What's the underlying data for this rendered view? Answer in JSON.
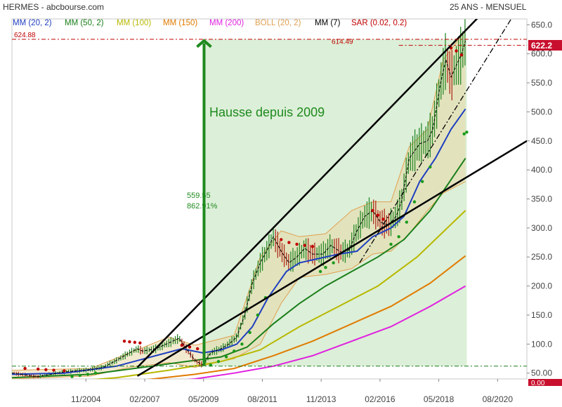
{
  "chart_data": {
    "type": "line",
    "header": {
      "left": "HERMES - abcbourse.com",
      "right": "25 ANS - MENSUEL"
    },
    "legend": [
      {
        "label": "MM (20, 2)",
        "color": "#1f3fbf"
      },
      {
        "label": "MM (50, 2)",
        "color": "#1a7f1a"
      },
      {
        "label": "MM (100)",
        "color": "#b8b800"
      },
      {
        "label": "MM (150)",
        "color": "#e07b00"
      },
      {
        "label": "MM (200)",
        "color": "#e020e0"
      },
      {
        "label": "BOLL (20, 2)",
        "color": "#e0a050"
      },
      {
        "label": "MM (7)",
        "color": "#000000"
      },
      {
        "label": "SAR (0.02, 0.2)",
        "color": "#c00000"
      }
    ],
    "x_ticks": [
      {
        "label": "11/2004",
        "t": 2004.83
      },
      {
        "label": "02/2007",
        "t": 2007.08
      },
      {
        "label": "05/2009",
        "t": 2009.33
      },
      {
        "label": "08/2011",
        "t": 2011.58
      },
      {
        "label": "11/2013",
        "t": 2013.83
      },
      {
        "label": "02/2016",
        "t": 2016.08
      },
      {
        "label": "05/2018",
        "t": 2018.33
      },
      {
        "label": "08/2020",
        "t": 2020.58
      }
    ],
    "y_ticks": [
      "50.00",
      "100.0",
      "150.0",
      "200.0",
      "250.0",
      "300.0",
      "350.0",
      "400.0",
      "450.0",
      "500.0",
      "550.0",
      "600.0",
      "650.0"
    ],
    "x_range": [
      2002.0,
      2021.7
    ],
    "y_range": [
      40,
      660
    ],
    "last_price_label": "622.2",
    "cut_label": "0.00",
    "level_624": "624.88",
    "level_614": "614.49",
    "base_level": 62,
    "annotation_title": "Hausse depuis 2009",
    "annotation_gain": "559.55",
    "annotation_pct": "862.91%",
    "price": [
      [
        2002.0,
        50
      ],
      [
        2002.5,
        47
      ],
      [
        2003.0,
        44
      ],
      [
        2003.5,
        48
      ],
      [
        2004.0,
        52
      ],
      [
        2004.5,
        54
      ],
      [
        2005.0,
        56
      ],
      [
        2005.5,
        60
      ],
      [
        2006.0,
        72
      ],
      [
        2006.5,
        85
      ],
      [
        2006.8,
        92
      ],
      [
        2007.0,
        88
      ],
      [
        2007.5,
        92
      ],
      [
        2008.0,
        102
      ],
      [
        2008.4,
        110
      ],
      [
        2008.7,
        90
      ],
      [
        2009.0,
        72
      ],
      [
        2009.3,
        64
      ],
      [
        2009.6,
        85
      ],
      [
        2010.0,
        92
      ],
      [
        2010.3,
        100
      ],
      [
        2010.6,
        112
      ],
      [
        2010.9,
        150
      ],
      [
        2011.2,
        205
      ],
      [
        2011.5,
        240
      ],
      [
        2011.8,
        265
      ],
      [
        2012.0,
        285
      ],
      [
        2012.3,
        260
      ],
      [
        2012.6,
        240
      ],
      [
        2012.9,
        250
      ],
      [
        2013.2,
        265
      ],
      [
        2013.5,
        255
      ],
      [
        2013.9,
        255
      ],
      [
        2014.2,
        270
      ],
      [
        2014.6,
        258
      ],
      [
        2014.9,
        262
      ],
      [
        2015.2,
        295
      ],
      [
        2015.5,
        320
      ],
      [
        2015.8,
        330
      ],
      [
        2016.1,
        310
      ],
      [
        2016.4,
        305
      ],
      [
        2016.7,
        320
      ],
      [
        2016.9,
        345
      ],
      [
        2017.2,
        420
      ],
      [
        2017.6,
        445
      ],
      [
        2017.9,
        450
      ],
      [
        2018.1,
        470
      ],
      [
        2018.4,
        550
      ],
      [
        2018.6,
        590
      ],
      [
        2018.8,
        560
      ],
      [
        2019.0,
        580
      ],
      [
        2019.2,
        600
      ],
      [
        2019.35,
        622.2
      ]
    ],
    "mm20": [
      [
        2002.0,
        48
      ],
      [
        2004.0,
        50
      ],
      [
        2006.0,
        62
      ],
      [
        2007.5,
        80
      ],
      [
        2008.5,
        92
      ],
      [
        2009.3,
        85
      ],
      [
        2010.0,
        90
      ],
      [
        2010.6,
        100
      ],
      [
        2011.2,
        130
      ],
      [
        2011.8,
        180
      ],
      [
        2012.5,
        225
      ],
      [
        2013.0,
        240
      ],
      [
        2013.8,
        248
      ],
      [
        2014.5,
        255
      ],
      [
        2015.2,
        260
      ],
      [
        2015.8,
        285
      ],
      [
        2016.5,
        300
      ],
      [
        2017.0,
        320
      ],
      [
        2017.6,
        380
      ],
      [
        2018.2,
        420
      ],
      [
        2018.8,
        470
      ],
      [
        2019.35,
        505
      ]
    ],
    "mm50": [
      [
        2002.0,
        42
      ],
      [
        2005.0,
        48
      ],
      [
        2007.0,
        60
      ],
      [
        2009.0,
        72
      ],
      [
        2010.0,
        78
      ],
      [
        2011.0,
        95
      ],
      [
        2012.0,
        135
      ],
      [
        2013.0,
        170
      ],
      [
        2014.0,
        200
      ],
      [
        2015.0,
        225
      ],
      [
        2016.0,
        250
      ],
      [
        2017.0,
        280
      ],
      [
        2018.0,
        330
      ],
      [
        2019.35,
        420
      ]
    ],
    "mm100": [
      [
        2002.0,
        32
      ],
      [
        2004.0,
        35
      ],
      [
        2006.0,
        42
      ],
      [
        2008.0,
        55
      ],
      [
        2010.0,
        70
      ],
      [
        2011.5,
        90
      ],
      [
        2013.0,
        130
      ],
      [
        2014.5,
        165
      ],
      [
        2016.0,
        200
      ],
      [
        2017.5,
        250
      ],
      [
        2019.35,
        330
      ]
    ],
    "mm150": [
      [
        2002.0,
        28
      ],
      [
        2005.0,
        30
      ],
      [
        2007.0,
        38
      ],
      [
        2009.0,
        48
      ],
      [
        2010.5,
        58
      ],
      [
        2012.0,
        80
      ],
      [
        2013.5,
        105
      ],
      [
        2015.0,
        135
      ],
      [
        2016.5,
        165
      ],
      [
        2018.0,
        205
      ],
      [
        2019.35,
        252
      ]
    ],
    "mm200": [
      [
        2002.0,
        24
      ],
      [
        2005.0,
        26
      ],
      [
        2007.0,
        32
      ],
      [
        2009.0,
        40
      ],
      [
        2010.5,
        50
      ],
      [
        2012.0,
        62
      ],
      [
        2013.5,
        80
      ],
      [
        2015.0,
        105
      ],
      [
        2016.5,
        130
      ],
      [
        2018.0,
        165
      ],
      [
        2019.35,
        200
      ]
    ],
    "boll_upper": [
      [
        2002.0,
        55
      ],
      [
        2005.0,
        58
      ],
      [
        2006.5,
        85
      ],
      [
        2008.0,
        112
      ],
      [
        2009.0,
        98
      ],
      [
        2010.5,
        115
      ],
      [
        2011.5,
        250
      ],
      [
        2012.3,
        295
      ],
      [
        2013.0,
        285
      ],
      [
        2014.0,
        290
      ],
      [
        2015.0,
        330
      ],
      [
        2015.8,
        345
      ],
      [
        2016.5,
        345
      ],
      [
        2017.2,
        440
      ],
      [
        2017.9,
        470
      ],
      [
        2018.5,
        590
      ],
      [
        2019.35,
        640
      ]
    ],
    "boll_lower": [
      [
        2002.0,
        40
      ],
      [
        2005.0,
        45
      ],
      [
        2006.5,
        60
      ],
      [
        2008.0,
        68
      ],
      [
        2009.0,
        60
      ],
      [
        2010.5,
        75
      ],
      [
        2011.5,
        100
      ],
      [
        2012.3,
        170
      ],
      [
        2013.0,
        215
      ],
      [
        2014.0,
        220
      ],
      [
        2015.0,
        230
      ],
      [
        2015.8,
        255
      ],
      [
        2016.5,
        260
      ],
      [
        2017.2,
        290
      ],
      [
        2017.9,
        330
      ],
      [
        2018.5,
        360
      ],
      [
        2019.35,
        380
      ]
    ],
    "trendlines": [
      {
        "from": [
          2006.8,
          60
        ],
        "to": [
          2020.0,
          670
        ],
        "style": "solid"
      },
      {
        "from": [
          2006.8,
          45
        ],
        "to": [
          2021.7,
          450
        ],
        "style": "solid"
      },
      {
        "from": [
          2015.3,
          240
        ],
        "to": [
          2021.1,
          660
        ],
        "style": "dashdot"
      }
    ],
    "sar_red": [
      [
        2002.5,
        58
      ],
      [
        2003.0,
        57
      ],
      [
        2003.3,
        56
      ],
      [
        2003.6,
        55
      ],
      [
        2004.0,
        54
      ],
      [
        2006.3,
        105
      ],
      [
        2006.5,
        104
      ],
      [
        2006.7,
        103
      ],
      [
        2006.9,
        102
      ],
      [
        2008.5,
        98
      ],
      [
        2008.8,
        95
      ],
      [
        2009.1,
        92
      ],
      [
        2012.3,
        280
      ],
      [
        2012.6,
        275
      ],
      [
        2012.9,
        272
      ],
      [
        2013.2,
        270
      ],
      [
        2013.5,
        268
      ],
      [
        2015.8,
        330
      ],
      [
        2016.0,
        322
      ],
      [
        2016.2,
        315
      ],
      [
        2018.8,
        610
      ],
      [
        2019.0,
        605
      ],
      [
        2019.2,
        598
      ]
    ],
    "sar_green": [
      [
        2004.3,
        44
      ],
      [
        2004.6,
        46
      ],
      [
        2004.9,
        48
      ],
      [
        2005.2,
        50
      ],
      [
        2009.6,
        64
      ],
      [
        2009.9,
        70
      ],
      [
        2010.2,
        78
      ],
      [
        2010.5,
        88
      ],
      [
        2010.8,
        100
      ],
      [
        2011.1,
        120
      ],
      [
        2011.4,
        150
      ],
      [
        2011.7,
        180
      ],
      [
        2013.8,
        225
      ],
      [
        2014.0,
        232
      ],
      [
        2014.3,
        240
      ],
      [
        2016.5,
        272
      ],
      [
        2016.8,
        285
      ],
      [
        2017.1,
        310
      ],
      [
        2017.4,
        345
      ],
      [
        2017.7,
        380
      ],
      [
        2018.0,
        405
      ],
      [
        2019.3,
        462
      ],
      [
        2019.4,
        465
      ]
    ]
  }
}
